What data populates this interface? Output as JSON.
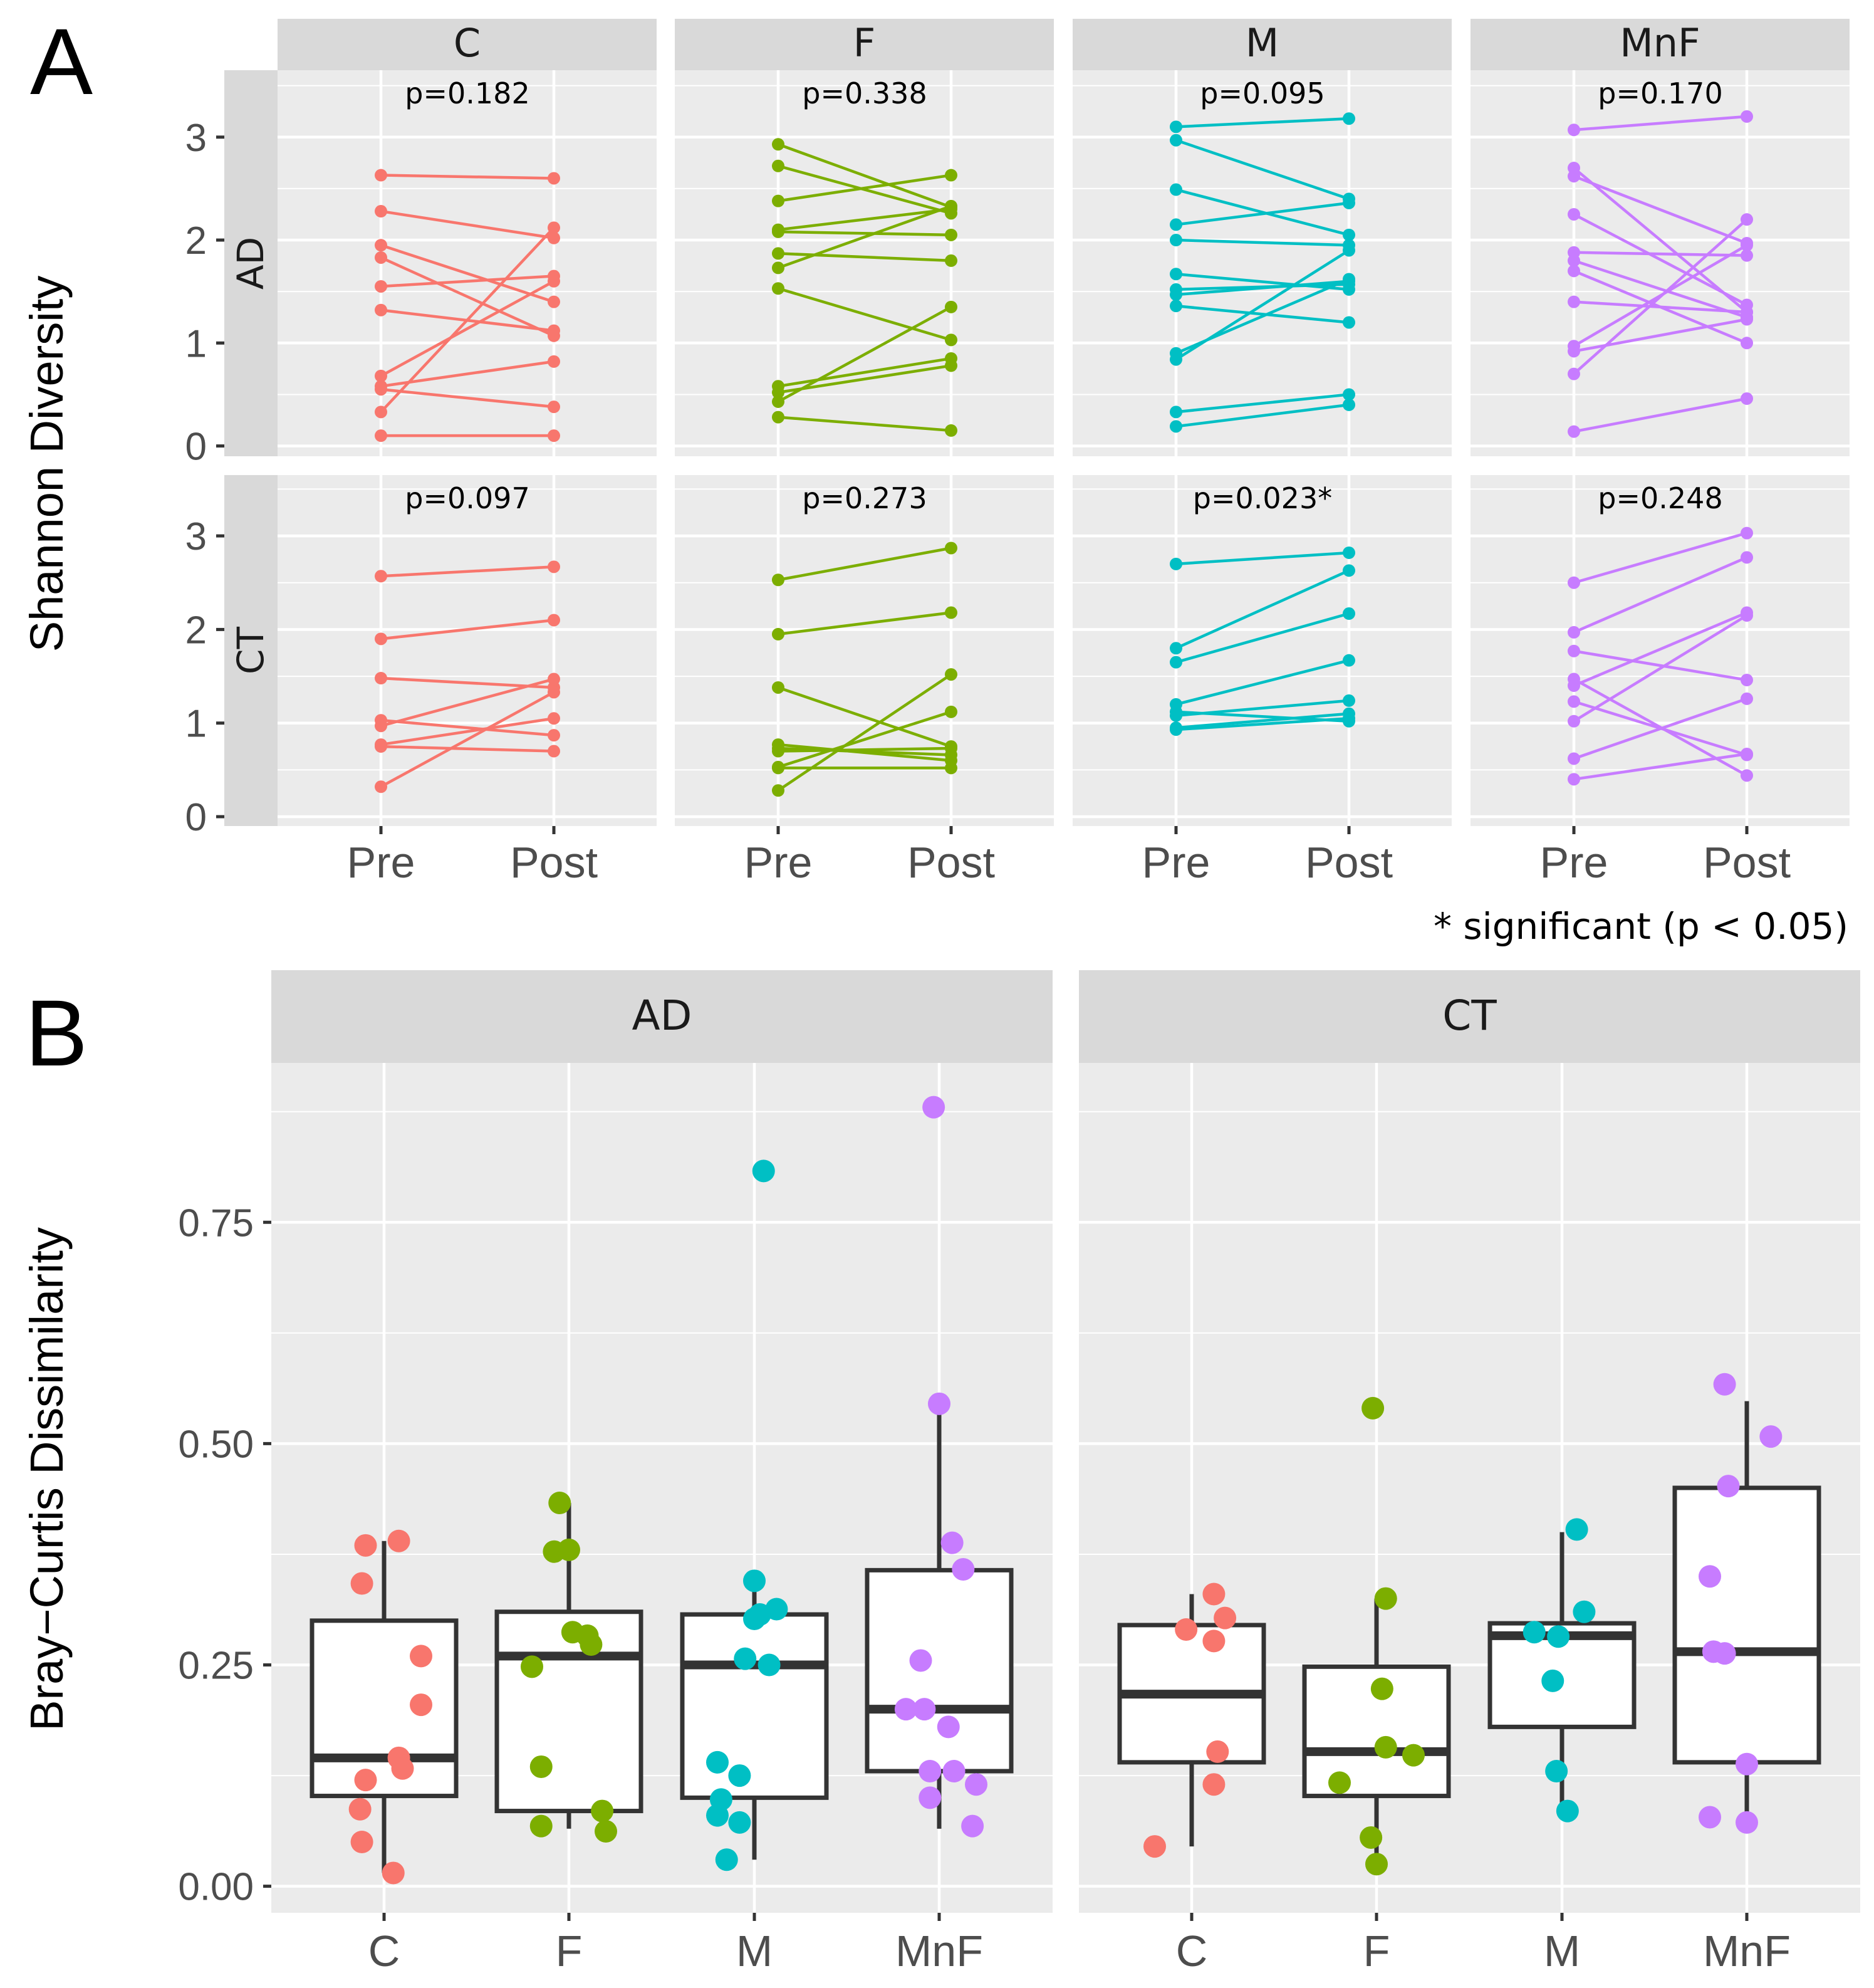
{
  "panel_a": {
    "label": "A",
    "ylabel": "Shannon Diversity",
    "footnote": "* significant (p < 0.05)"
  },
  "panel_b": {
    "label": "B",
    "ylabel": "Bray−Curtis Dissimilarity"
  },
  "colors": {
    "C": "#F8766D",
    "F": "#7CAE00",
    "M": "#00BFC4",
    "MnF": "#C77CFF",
    "panel_bg": "#EBEBEB",
    "strip_bg": "#D9D9D9",
    "grid": "#FFFFFF",
    "axis_text": "#4D4D4D"
  },
  "chart_data": [
    {
      "type": "line",
      "name": "Shannon diversity pre vs post",
      "ylabel": "Shannon Diversity",
      "x": [
        "Pre",
        "Post"
      ],
      "ylim": [
        -0.1,
        3.65
      ],
      "yticks": [
        0,
        1,
        2,
        3
      ],
      "facet_cols": [
        "C",
        "F",
        "M",
        "MnF"
      ],
      "facet_rows": [
        "AD",
        "CT"
      ],
      "grid": true,
      "footnote": "* significant (p < 0.05)",
      "panels": [
        {
          "row": "AD",
          "col": "C",
          "p_label": "p=0.182",
          "pairs": [
            [
              2.63,
              2.6
            ],
            [
              2.28,
              2.02
            ],
            [
              1.95,
              1.4
            ],
            [
              1.83,
              1.07
            ],
            [
              1.55,
              1.65
            ],
            [
              1.32,
              1.12
            ],
            [
              0.68,
              1.6
            ],
            [
              0.58,
              0.82
            ],
            [
              0.55,
              0.38
            ],
            [
              0.33,
              2.12
            ],
            [
              0.1,
              0.1
            ]
          ]
        },
        {
          "row": "AD",
          "col": "F",
          "p_label": "p=0.338",
          "pairs": [
            [
              2.93,
              2.32
            ],
            [
              2.72,
              2.26
            ],
            [
              2.38,
              2.63
            ],
            [
              2.1,
              2.3
            ],
            [
              2.08,
              2.05
            ],
            [
              1.87,
              1.8
            ],
            [
              1.73,
              2.33
            ],
            [
              1.53,
              1.03
            ],
            [
              0.58,
              0.85
            ],
            [
              0.52,
              0.78
            ],
            [
              0.43,
              1.35
            ],
            [
              0.28,
              0.15
            ]
          ]
        },
        {
          "row": "AD",
          "col": "M",
          "p_label": "p=0.095",
          "pairs": [
            [
              3.1,
              3.18
            ],
            [
              2.97,
              2.4
            ],
            [
              2.49,
              2.05
            ],
            [
              2.15,
              2.36
            ],
            [
              2.0,
              1.95
            ],
            [
              1.67,
              1.52
            ],
            [
              1.52,
              1.57
            ],
            [
              1.47,
              1.6
            ],
            [
              1.36,
              1.2
            ],
            [
              0.9,
              1.62
            ],
            [
              0.84,
              1.9
            ],
            [
              0.33,
              0.5
            ],
            [
              0.19,
              0.4
            ]
          ]
        },
        {
          "row": "AD",
          "col": "MnF",
          "p_label": "p=0.170",
          "pairs": [
            [
              3.07,
              3.2
            ],
            [
              2.7,
              1.3
            ],
            [
              2.62,
              1.97
            ],
            [
              2.25,
              1.37
            ],
            [
              1.88,
              1.85
            ],
            [
              1.8,
              1.25
            ],
            [
              1.7,
              1.0
            ],
            [
              1.4,
              1.3
            ],
            [
              0.97,
              1.95
            ],
            [
              0.92,
              1.23
            ],
            [
              0.7,
              2.2
            ],
            [
              0.14,
              0.46
            ]
          ]
        },
        {
          "row": "CT",
          "col": "C",
          "p_label": "p=0.097",
          "pairs": [
            [
              2.57,
              2.67
            ],
            [
              1.9,
              2.1
            ],
            [
              1.48,
              1.38
            ],
            [
              1.03,
              0.87
            ],
            [
              0.97,
              1.47
            ],
            [
              0.77,
              1.05
            ],
            [
              0.75,
              0.7
            ],
            [
              0.32,
              1.33
            ]
          ]
        },
        {
          "row": "CT",
          "col": "F",
          "p_label": "p=0.273",
          "pairs": [
            [
              2.53,
              2.87
            ],
            [
              1.95,
              2.18
            ],
            [
              1.38,
              0.75
            ],
            [
              0.77,
              0.6
            ],
            [
              0.73,
              0.66
            ],
            [
              0.7,
              0.73
            ],
            [
              0.53,
              1.12
            ],
            [
              0.52,
              0.52
            ],
            [
              0.28,
              1.52
            ]
          ]
        },
        {
          "row": "CT",
          "col": "M",
          "p_label": "p=0.023*",
          "pairs": [
            [
              2.7,
              2.82
            ],
            [
              1.8,
              2.63
            ],
            [
              1.65,
              2.17
            ],
            [
              1.2,
              1.67
            ],
            [
              1.12,
              1.02
            ],
            [
              1.08,
              1.24
            ],
            [
              0.95,
              1.1
            ],
            [
              0.93,
              1.05
            ]
          ]
        },
        {
          "row": "CT",
          "col": "MnF",
          "p_label": "p=0.248",
          "pairs": [
            [
              2.5,
              3.03
            ],
            [
              1.97,
              2.77
            ],
            [
              1.77,
              1.46
            ],
            [
              1.47,
              0.44
            ],
            [
              1.4,
              2.18
            ],
            [
              1.23,
              0.66
            ],
            [
              1.02,
              2.15
            ],
            [
              0.62,
              1.26
            ],
            [
              0.4,
              0.67
            ]
          ]
        }
      ]
    },
    {
      "type": "box",
      "name": "Bray-Curtis dissimilarity",
      "ylabel": "Bray−Curtis Dissimilarity",
      "categories": [
        "C",
        "F",
        "M",
        "MnF"
      ],
      "facets": [
        "AD",
        "CT"
      ],
      "ylim": [
        -0.03,
        0.93
      ],
      "yticks": [
        0.0,
        0.25,
        0.5,
        0.75
      ],
      "ytick_labels": [
        "0.00",
        "0.25",
        "0.50",
        "0.75"
      ],
      "grid": true,
      "groups": [
        {
          "facet": "AD",
          "cat": "C",
          "q1": 0.102,
          "median": 0.145,
          "q3": 0.3,
          "wlo": 0.015,
          "whi": 0.39,
          "points": [
            [
              -0.1,
              0.385
            ],
            [
              0.08,
              0.39
            ],
            [
              -0.12,
              0.342
            ],
            [
              0.2,
              0.26
            ],
            [
              0.2,
              0.205
            ],
            [
              0.08,
              0.145
            ],
            [
              0.1,
              0.133
            ],
            [
              -0.1,
              0.12
            ],
            [
              -0.13,
              0.087
            ],
            [
              -0.12,
              0.05
            ],
            [
              0.05,
              0.015
            ]
          ]
        },
        {
          "facet": "AD",
          "cat": "F",
          "q1": 0.085,
          "median": 0.26,
          "q3": 0.31,
          "wlo": 0.065,
          "whi": 0.433,
          "points": [
            [
              -0.05,
              0.433
            ],
            [
              -0.08,
              0.378
            ],
            [
              0.0,
              0.38
            ],
            [
              0.02,
              0.287
            ],
            [
              0.1,
              0.283
            ],
            [
              0.12,
              0.273
            ],
            [
              -0.2,
              0.248
            ],
            [
              -0.15,
              0.135
            ],
            [
              0.18,
              0.085
            ],
            [
              0.2,
              0.062
            ],
            [
              -0.15,
              0.068
            ]
          ]
        },
        {
          "facet": "AD",
          "cat": "M",
          "q1": 0.1,
          "median": 0.25,
          "q3": 0.307,
          "wlo": 0.03,
          "whi": 0.345,
          "points": [
            [
              0.05,
              0.808
            ],
            [
              0.0,
              0.345
            ],
            [
              0.12,
              0.313
            ],
            [
              0.0,
              0.302
            ],
            [
              0.03,
              0.307
            ],
            [
              -0.05,
              0.257
            ],
            [
              0.08,
              0.25
            ],
            [
              -0.2,
              0.14
            ],
            [
              -0.08,
              0.125
            ],
            [
              -0.18,
              0.098
            ],
            [
              -0.2,
              0.08
            ],
            [
              -0.08,
              0.072
            ],
            [
              -0.15,
              0.03
            ]
          ]
        },
        {
          "facet": "AD",
          "cat": "MnF",
          "q1": 0.13,
          "median": 0.2,
          "q3": 0.357,
          "wlo": 0.065,
          "whi": 0.545,
          "points": [
            [
              -0.03,
              0.88
            ],
            [
              0.0,
              0.545
            ],
            [
              0.07,
              0.388
            ],
            [
              0.13,
              0.358
            ],
            [
              -0.1,
              0.255
            ],
            [
              -0.18,
              0.2
            ],
            [
              -0.08,
              0.2
            ],
            [
              0.05,
              0.18
            ],
            [
              -0.05,
              0.13
            ],
            [
              0.08,
              0.13
            ],
            [
              0.2,
              0.115
            ],
            [
              -0.05,
              0.1
            ],
            [
              0.18,
              0.068
            ]
          ]
        },
        {
          "facet": "CT",
          "cat": "C",
          "q1": 0.14,
          "median": 0.217,
          "q3": 0.295,
          "wlo": 0.045,
          "whi": 0.33,
          "points": [
            [
              0.12,
              0.33
            ],
            [
              -0.03,
              0.29
            ],
            [
              0.18,
              0.303
            ],
            [
              0.12,
              0.277
            ],
            [
              0.14,
              0.152
            ],
            [
              0.12,
              0.115
            ],
            [
              -0.2,
              0.045
            ]
          ]
        },
        {
          "facet": "CT",
          "cat": "F",
          "q1": 0.102,
          "median": 0.152,
          "q3": 0.248,
          "wlo": 0.025,
          "whi": 0.325,
          "points": [
            [
              -0.02,
              0.54
            ],
            [
              0.05,
              0.325
            ],
            [
              0.03,
              0.223
            ],
            [
              0.05,
              0.157
            ],
            [
              0.2,
              0.148
            ],
            [
              -0.2,
              0.117
            ],
            [
              -0.03,
              0.055
            ],
            [
              0.0,
              0.025
            ]
          ]
        },
        {
          "facet": "CT",
          "cat": "M",
          "q1": 0.18,
          "median": 0.283,
          "q3": 0.297,
          "wlo": 0.085,
          "whi": 0.4,
          "points": [
            [
              0.08,
              0.403
            ],
            [
              0.12,
              0.31
            ],
            [
              -0.15,
              0.287
            ],
            [
              -0.02,
              0.282
            ],
            [
              -0.05,
              0.232
            ],
            [
              -0.03,
              0.13
            ],
            [
              0.03,
              0.085
            ]
          ]
        },
        {
          "facet": "CT",
          "cat": "MnF",
          "q1": 0.14,
          "median": 0.265,
          "q3": 0.45,
          "wlo": 0.072,
          "whi": 0.548,
          "points": [
            [
              -0.12,
              0.567
            ],
            [
              0.13,
              0.508
            ],
            [
              -0.1,
              0.452
            ],
            [
              -0.2,
              0.35
            ],
            [
              -0.18,
              0.265
            ],
            [
              -0.12,
              0.263
            ],
            [
              0.0,
              0.138
            ],
            [
              -0.2,
              0.078
            ],
            [
              0.0,
              0.072
            ]
          ]
        }
      ]
    }
  ]
}
